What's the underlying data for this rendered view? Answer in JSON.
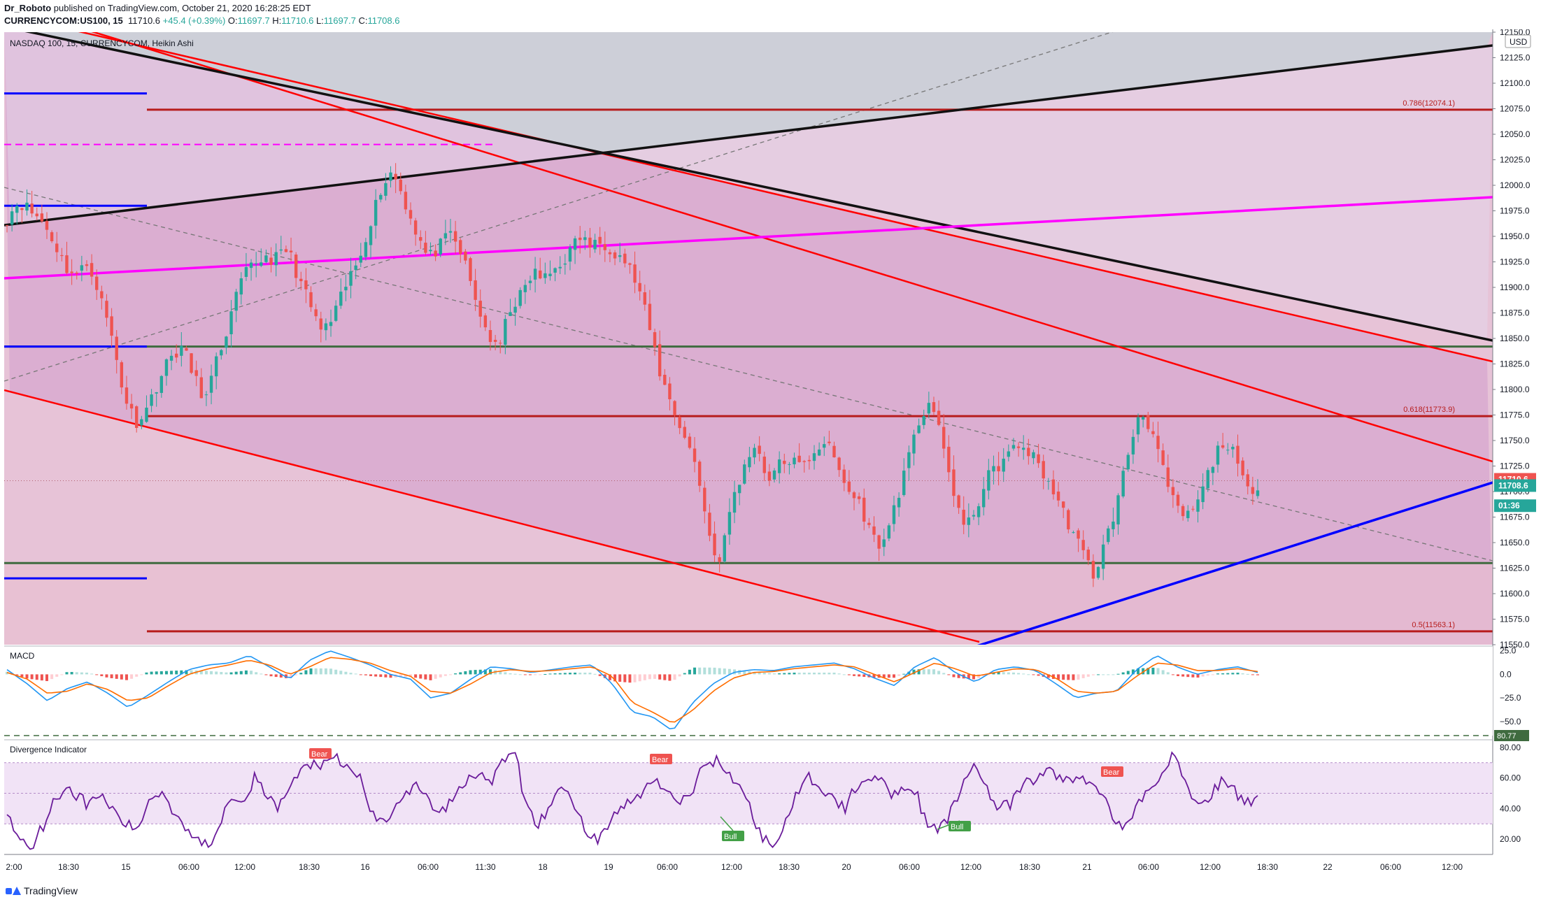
{
  "header": {
    "author": "Dr_Roboto",
    "published": "published on TradingView.com, October 21, 2020 16:28:25 EDT",
    "symbol": "CURRENCYCOM:US100, 15",
    "last": "11710.6",
    "change": "+45.4 (+0.39%)",
    "o_label": "O:",
    "o": "11697.7",
    "h_label": "H:",
    "h": "11710.6",
    "l_label": "L:",
    "l": "11697.7",
    "c_label": "C:",
    "c": "11708.6"
  },
  "footer": {
    "brand": "TradingView"
  },
  "colors": {
    "up": "#26a69a",
    "down": "#ef5350",
    "channel": "#ff0000",
    "black_line": "#000000",
    "magenta": "#ff00ff",
    "fib": "#b71c1c",
    "green_level": "#2e5e2e",
    "blue": "#0000ff",
    "macd": "#2196f3",
    "signal": "#ff6d00"
  },
  "chart_data": [
    {
      "type": "candlestick",
      "title": "NASDAQ 100, 15, CURRENCYCOM, Heikin Ashi",
      "currency": "USD",
      "ylim": [
        11550,
        12150
      ],
      "y_ticks": [
        "12150.0",
        "12125.0",
        "12100.0",
        "12075.0",
        "12050.0",
        "12025.0",
        "12000.0",
        "11975.0",
        "11950.0",
        "11925.0",
        "11900.0",
        "11875.0",
        "11850.0",
        "11825.0",
        "11800.0",
        "11775.0",
        "11750.0",
        "11725.0",
        "11700.0",
        "11675.0",
        "11650.0",
        "11625.0",
        "11600.0",
        "11575.0",
        "11550.0"
      ],
      "x_ticks": [
        "2:00",
        "18:30",
        "15",
        "06:00",
        "12:00",
        "18:30",
        "16",
        "06:00",
        "11:30",
        "18",
        "19",
        "06:00",
        "12:00",
        "18:30",
        "20",
        "06:00",
        "12:00",
        "18:30",
        "21",
        "06:00",
        "12:00",
        "18:30",
        "22",
        "06:00",
        "12:00"
      ],
      "anchor_closes": [
        11968,
        11985,
        11975,
        11965,
        11945,
        11920,
        11912,
        11925,
        11890,
        11850,
        11795,
        11768,
        11782,
        11810,
        11832,
        11842,
        11812,
        11790,
        11830,
        11865,
        11905,
        11922,
        11930,
        11928,
        11938,
        11908,
        11880,
        11855,
        11872,
        11902,
        11925,
        11962,
        11997,
        12015,
        11985,
        11955,
        11928,
        11940,
        11952,
        11930,
        11890,
        11858,
        11835,
        11880,
        11892,
        11915,
        11908,
        11920,
        11932,
        11950,
        11940,
        11945,
        11935,
        11925,
        11900,
        11858,
        11810,
        11782,
        11752,
        11725,
        11660,
        11628,
        11692,
        11720,
        11750,
        11712,
        11725,
        11732,
        11722,
        11740,
        11750,
        11725,
        11700,
        11688,
        11655,
        11648,
        11690,
        11725,
        11768,
        11792,
        11745,
        11700,
        11660,
        11688,
        11715,
        11728,
        11740,
        11745,
        11730,
        11712,
        11688,
        11665,
        11640,
        11618,
        11652,
        11690,
        11742,
        11782,
        11758,
        11715,
        11682,
        11675,
        11692,
        11725,
        11750,
        11735,
        11700,
        11708
      ],
      "levels": [
        {
          "label": "0.786(12074.1)",
          "value": 12074.1
        },
        {
          "label": "0.618(11773.9)",
          "value": 11773.9
        },
        {
          "label": "0.5(11563.1)",
          "value": 11563.1
        }
      ],
      "price_tags": [
        {
          "label": "11710.6",
          "value": 11710.6,
          "color": "#ef5350"
        },
        {
          "label": "11708.6",
          "value": 11708.6,
          "color": "#26a69a"
        },
        {
          "label": "01:36",
          "value": 11693,
          "color": "#26a69a"
        }
      ]
    },
    {
      "type": "histogram",
      "title": "MACD",
      "ylim": [
        -65,
        30
      ],
      "y_ticks": [
        "25.0",
        "0.0",
        "−25.0",
        "−50.0"
      ],
      "anchors_macd": [
        5,
        -10,
        -28,
        -15,
        -8,
        -20,
        -35,
        -22,
        -8,
        5,
        10,
        12,
        20,
        8,
        -5,
        15,
        25,
        18,
        10,
        0,
        -5,
        -25,
        -20,
        -5,
        8,
        6,
        2,
        5,
        8,
        10,
        -10,
        -40,
        -45,
        -60,
        -30,
        -10,
        2,
        5,
        4,
        8,
        10,
        12,
        6,
        -4,
        -12,
        8,
        18,
        2,
        -8,
        5,
        8,
        4,
        -10,
        -25,
        -20,
        -18,
        5,
        20,
        8,
        0,
        5,
        8,
        2
      ],
      "anchors_signal": [
        2,
        -5,
        -20,
        -18,
        -10,
        -16,
        -28,
        -25,
        -12,
        0,
        6,
        10,
        15,
        10,
        0,
        8,
        18,
        16,
        12,
        4,
        -2,
        -18,
        -20,
        -10,
        2,
        5,
        3,
        4,
        6,
        8,
        -2,
        -30,
        -40,
        -52,
        -38,
        -18,
        -4,
        2,
        3,
        6,
        8,
        10,
        8,
        0,
        -8,
        2,
        12,
        6,
        -2,
        2,
        6,
        5,
        -4,
        -18,
        -20,
        -18,
        -2,
        12,
        10,
        4,
        4,
        6,
        3
      ]
    },
    {
      "type": "line",
      "title": "Divergence Indicator",
      "ylim": [
        10,
        85
      ],
      "y_ticks": [
        "80.00",
        "60.00",
        "40.00",
        "20.00"
      ],
      "dashed_value_tag": "80.77",
      "bands": [
        30,
        50,
        70
      ],
      "anchors": [
        35,
        22,
        15,
        28,
        45,
        55,
        48,
        42,
        50,
        38,
        30,
        25,
        45,
        52,
        40,
        30,
        20,
        15,
        30,
        50,
        45,
        60,
        48,
        40,
        55,
        65,
        70,
        68,
        72,
        65,
        60,
        35,
        30,
        45,
        50,
        55,
        42,
        38,
        50,
        60,
        65,
        55,
        70,
        80,
        40,
        30,
        40,
        55,
        45,
        25,
        20,
        30,
        40,
        45,
        52,
        60,
        48,
        45,
        50,
        68,
        72,
        65,
        55,
        40,
        20,
        18,
        30,
        50,
        60,
        55,
        45,
        40,
        55,
        62,
        58,
        50,
        55,
        52,
        28,
        25,
        38,
        55,
        70,
        55,
        40,
        42,
        55,
        58,
        65,
        62,
        58,
        60,
        55,
        50,
        30,
        28,
        45,
        52,
        68,
        75,
        55,
        40,
        48,
        60,
        52,
        42,
        50
      ]
    }
  ],
  "markers": [
    {
      "label": "Bear",
      "kind": "bear"
    },
    {
      "label": "Bear",
      "kind": "bear"
    },
    {
      "label": "Bull",
      "kind": "bull"
    },
    {
      "label": "Bull",
      "kind": "bull"
    },
    {
      "label": "Bear",
      "kind": "bear"
    }
  ]
}
